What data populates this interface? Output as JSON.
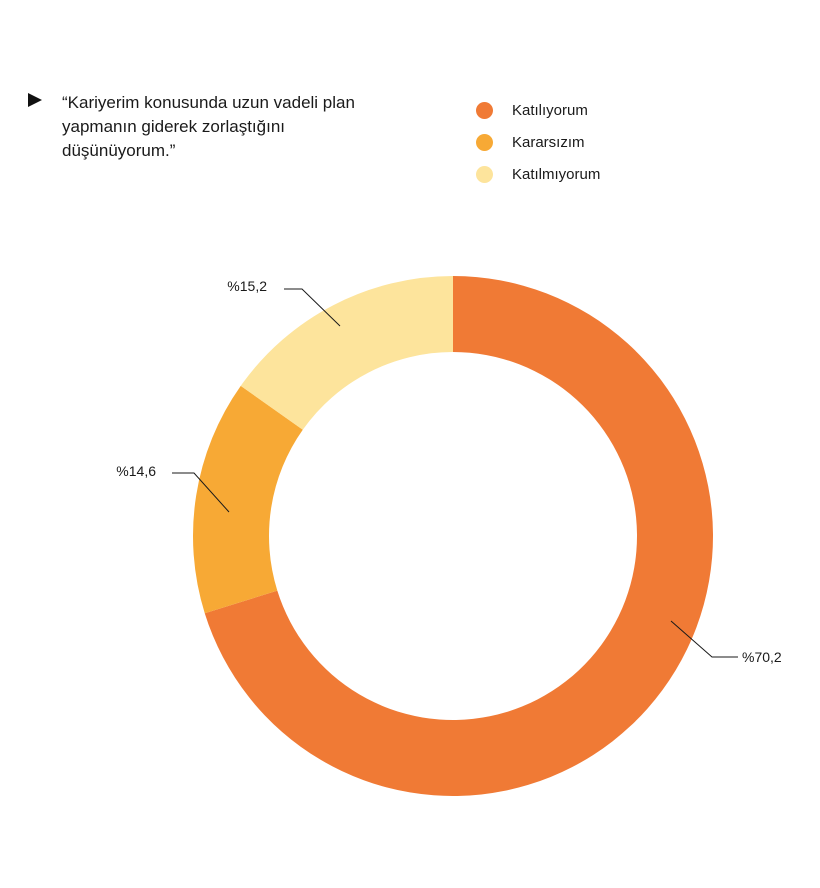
{
  "question": "“Kariyerim konusunda uzun vadeli plan yapmanın giderek zorlaştığını düşünüyorum.”",
  "chart_data": {
    "type": "pie",
    "variant": "donut",
    "title": "",
    "legend_position": "top-right",
    "categories": [
      "Katılıyorum",
      "Kararsızım",
      "Katılmıyorum"
    ],
    "values": [
      70.2,
      14.6,
      15.2
    ],
    "value_labels": [
      "%70,2",
      "%14,6",
      "%15,2"
    ],
    "colors": [
      "#F07A35",
      "#F7A935",
      "#FDE49C"
    ]
  }
}
